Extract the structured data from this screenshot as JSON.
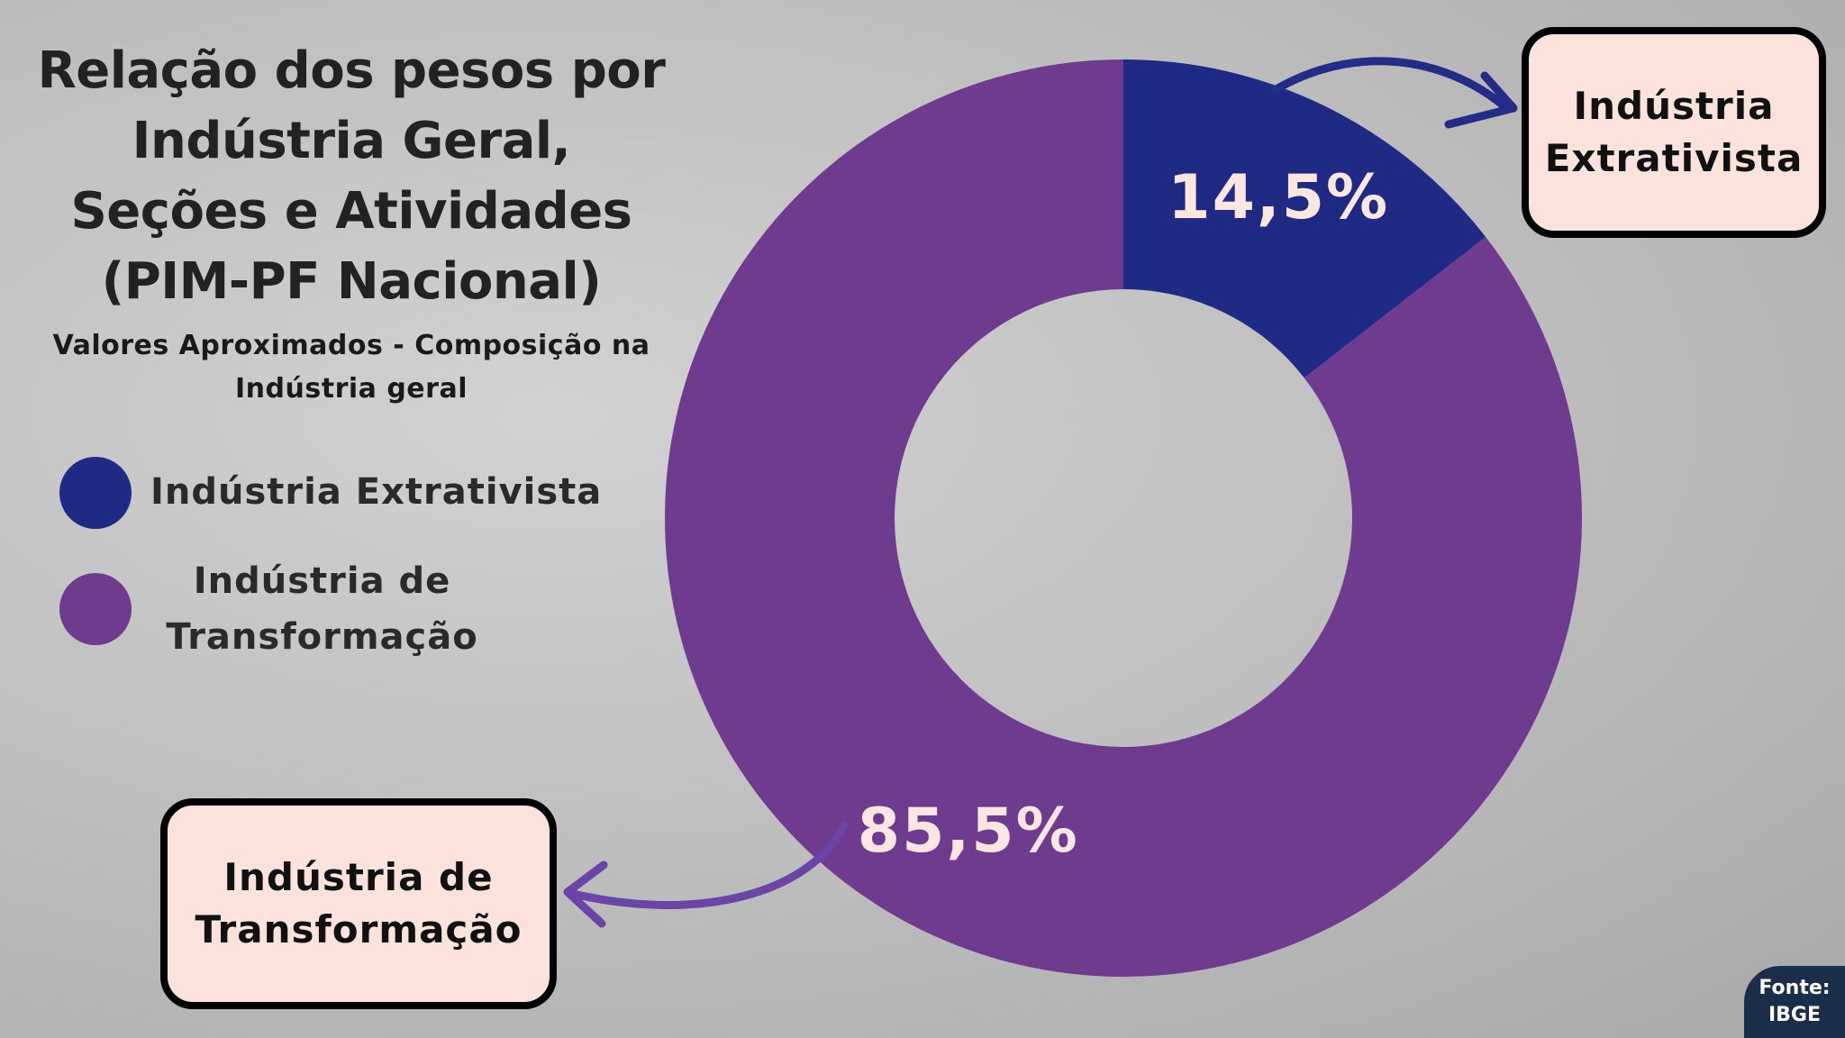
{
  "chart_data": {
    "type": "pie",
    "donut": true,
    "title": "Relação dos pesos por Indústria Geral, Seções e Atividades (PIM-PF Nacional)",
    "subtitle": "Valores Aproximados - Composição na Indústria geral",
    "categories": [
      "Indústria Extrativista",
      "Indústria de Transformação"
    ],
    "values": [
      14.5,
      85.5
    ],
    "value_labels": [
      "14,5%",
      "85,5%"
    ],
    "colors": [
      "#1e2a84",
      "#6e3b8f"
    ],
    "source": "Fonte: IBGE"
  }
}
